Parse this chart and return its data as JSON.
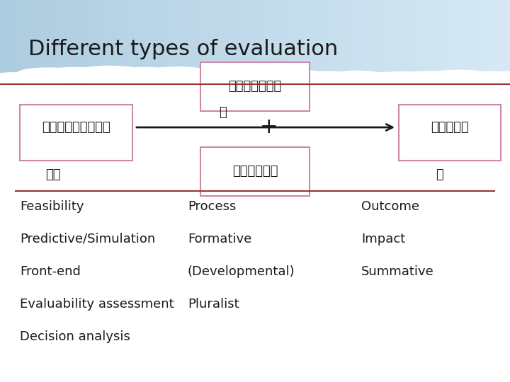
{
  "title": "Different types of evaluation",
  "title_fontsize": 22,
  "title_color": "#1a1a1a",
  "sky_color_top": "#aecde0",
  "sky_color_bottom": "#d6e9f5",
  "divider_color": "#993333",
  "box_border_color": "#cc88aa",
  "box_fill_color": "#ffffff",
  "arrow_color": "#1a1a1a",
  "thai_font_size": 13,
  "box1_text": "ความต้องก",
  "box1_text2": "าร",
  "box2_text": "ทรัพยาก",
  "box3_text": "กจกรรม",
  "center_text": "ร",
  "plus_text": "+",
  "box4_text": "ผลที่",
  "box4_text2": "ด",
  "col1_items": [
    "Feasibility",
    "Predictive/Simulation",
    "Front-end",
    "Evaluability assessment",
    "Decision analysis"
  ],
  "col2_items": [
    "Process",
    "Formative",
    "(Developmental)",
    "Pluralist"
  ],
  "col3_items": [
    "Outcome",
    "Impact",
    "Summative"
  ],
  "list_fontsize": 13,
  "list_color": "#1a1a1a"
}
